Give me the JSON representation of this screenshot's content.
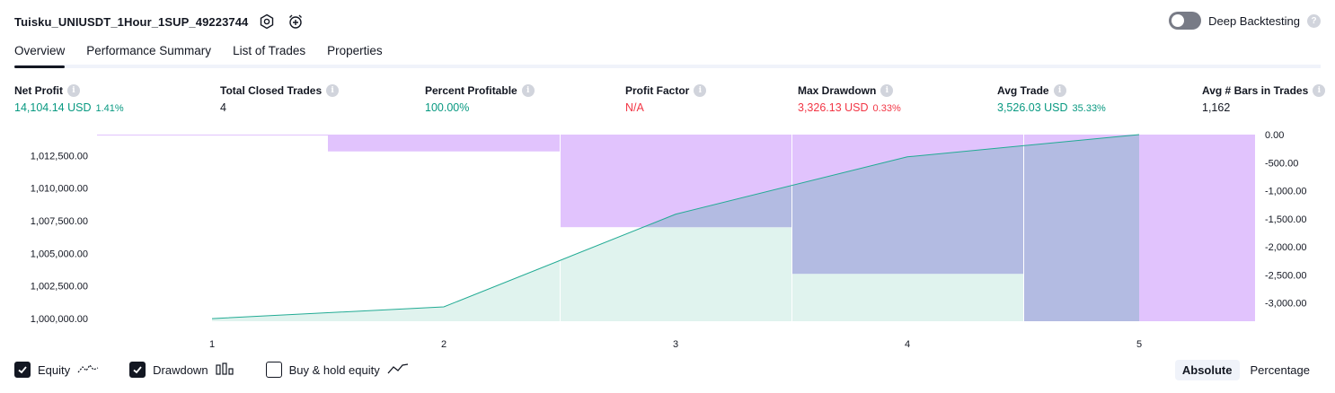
{
  "header": {
    "strategy_name": "Tuisku_UNIUSDT_1Hour_1SUP_49223744",
    "icons": [
      "settings-icon",
      "alert-add-icon"
    ]
  },
  "deep_backtesting": {
    "label": "Deep Backtesting",
    "enabled": false,
    "help_glyph": "?"
  },
  "tabs": [
    {
      "label": "Overview",
      "active": true
    },
    {
      "label": "Performance Summary",
      "active": false
    },
    {
      "label": "List of Trades",
      "active": false
    },
    {
      "label": "Properties",
      "active": false
    }
  ],
  "metrics": [
    {
      "label": "Net Profit",
      "value": "14,104.14 USD",
      "pct": "1.41%",
      "color": "green"
    },
    {
      "label": "Total Closed Trades",
      "value": "4",
      "pct": "",
      "color": "plain"
    },
    {
      "label": "Percent Profitable",
      "value": "100.00%",
      "pct": "",
      "color": "green"
    },
    {
      "label": "Profit Factor",
      "value": "N/A",
      "pct": "",
      "color": "red"
    },
    {
      "label": "Max Drawdown",
      "value": "3,326.13 USD",
      "pct": "0.33%",
      "color": "red"
    },
    {
      "label": "Avg Trade",
      "value": "3,526.03 USD",
      "pct": "35.33%",
      "color": "green"
    },
    {
      "label": "Avg # Bars in Trades",
      "value": "1,162",
      "pct": "",
      "color": "plain"
    }
  ],
  "info_glyph": "i",
  "chart_data": {
    "type": "line",
    "x": [
      1,
      2,
      3,
      4,
      5
    ],
    "x_tick_labels": [
      "1",
      "2",
      "3",
      "4",
      "5"
    ],
    "equity": [
      1000000.0,
      1000900.0,
      1008000.0,
      1012400.0,
      1014104.14
    ],
    "drawdown_bars": [
      {
        "from": 1.5,
        "to": 2.5,
        "value": -300.0
      },
      {
        "from": 2.5,
        "to": 3.5,
        "value": -1650.0
      },
      {
        "from": 3.5,
        "to": 4.5,
        "value": -2480.0
      },
      {
        "from": 4.5,
        "to": 5.5,
        "value": -3326.13
      }
    ],
    "left_axis": {
      "range": [
        999800,
        1014104.14
      ],
      "ticks": [
        1000000,
        1002500,
        1005000,
        1007500,
        1010000,
        1012500
      ],
      "tick_labels": [
        "1,000,000.00",
        "1,002,500.00",
        "1,005,000.00",
        "1,007,500.00",
        "1,010,000.00",
        "1,012,500.00"
      ]
    },
    "right_axis": {
      "range": [
        -3326.13,
        0
      ],
      "ticks": [
        0,
        -500,
        -1000,
        -1500,
        -2000,
        -2500,
        -3000
      ],
      "tick_labels": [
        "0.00",
        "-500.00",
        "-1,000.00",
        "-1,500.00",
        "-2,000.00",
        "-2,500.00",
        "-3,000.00"
      ]
    },
    "colors": {
      "equity_line": "#22ab94",
      "equity_fill": "#e0f3ee",
      "drawdown": "#e1c3fd",
      "overlap": "#b3bbe2",
      "grid": "#ffffff"
    }
  },
  "legend": [
    {
      "label": "Equity",
      "checked": true,
      "icon": "equity-line-icon"
    },
    {
      "label": "Drawdown",
      "checked": true,
      "icon": "drawdown-bars-icon"
    },
    {
      "label": "Buy & hold equity",
      "checked": false,
      "icon": "buy-hold-line-icon"
    }
  ],
  "view_mode": {
    "options": [
      "Absolute",
      "Percentage"
    ],
    "active": "Absolute"
  }
}
